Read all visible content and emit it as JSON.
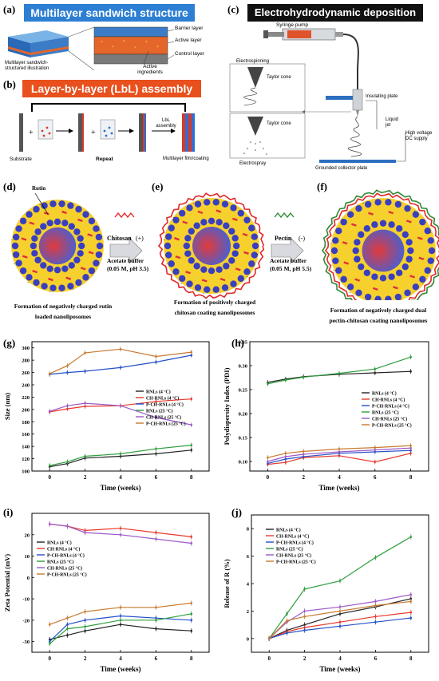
{
  "panel_labels": {
    "a": "(a)",
    "b": "(b)",
    "c": "(c)",
    "d": "(d)",
    "e": "(e)",
    "f": "(f)",
    "g": "(g)",
    "h": "(h)",
    "i": "(i)",
    "j": "(j)"
  },
  "panel_a": {
    "title": "Multilayer sandwich structure",
    "layers": [
      "Barrier layer",
      "Active layer",
      "Control layer"
    ],
    "illustration_label": "Multilayer sandwich-structured illustration",
    "ingredients_label": "Active ingredients"
  },
  "panel_b": {
    "title": "Layer-by-layer (LbL) assembly",
    "substrate": "Substrate",
    "repeat": "Repeat",
    "lbl": "LbL assembly",
    "result": "Multilayer film/coating"
  },
  "panel_c": {
    "title": "Electrohydrodynamic deposition",
    "syringe_pump": "Syringe pump",
    "electrospinning": "Electrospinning",
    "taylor_cone": "Taylor cone",
    "electrospray": "Electrospray",
    "insulating_plate": "Insulating plate",
    "liquid_jet": "Liquid jet",
    "hv": "High voltage DC supply",
    "collector": "Grounded collector plate"
  },
  "panel_def": {
    "rutin": "Rutin",
    "chitosan": "Chitosan",
    "chitosan_sign": "(+)",
    "pectin": "Pectin",
    "pectin_sign": "(-)",
    "buffer1": "Acetate buffer",
    "buffer1_cond": "(0.05 M, pH 3.5)",
    "buffer2": "Acetate buffer",
    "buffer2_cond": "(0.05 M, pH 5.5)",
    "cap_d": "Formation of negatively charged rutin  loaded nanoliposomes",
    "cap_e": "Formation of positively charged chitosan coating nanoliposomes",
    "cap_f": "Formation of negatively charged dual pectin-chitosan coating nanoliposomes"
  },
  "legend_labels": [
    "RNLs (4 °C)",
    "CH-RNLs (4 °C)",
    "P-CH-RNLs (4 °C)",
    "RNLs (25 °C)",
    "CH-RNLs (25 °C)",
    "P-CH-RNLs (25 °C)"
  ],
  "colors": {
    "RNLs4": "#222222",
    "CHRNLs4": "#e8382a",
    "PCHRNLs4": "#2250c8",
    "RNLs25": "#2e9e3c",
    "CHRNLs25": "#9b59c8",
    "PCHRNLs25": "#c87a2e",
    "banner_blue": "#2d7fd3",
    "banner_orange": "#e8501e",
    "banner_black": "#111111"
  },
  "chart_data": [
    {
      "id": "g",
      "type": "line",
      "xlabel": "Time (weeks)",
      "ylabel": "Size (nm)",
      "ylim": [
        100,
        310
      ],
      "yticks": [
        100,
        120,
        140,
        160,
        180,
        200,
        220,
        240,
        260,
        280,
        300
      ],
      "x": [
        0,
        1,
        2,
        4,
        6,
        8
      ],
      "series": [
        {
          "name": "RNLs (4 °C)",
          "values": [
            107,
            112,
            121,
            124,
            128,
            134
          ]
        },
        {
          "name": "CH-RNLs (4 °C)",
          "values": [
            196,
            201,
            205,
            206,
            213,
            217
          ]
        },
        {
          "name": "P-CH-RNLs (4 °C)",
          "values": [
            257,
            260,
            262,
            268,
            277,
            288
          ]
        },
        {
          "name": "RNLs (25 °C)",
          "values": [
            109,
            115,
            124,
            128,
            136,
            142
          ]
        },
        {
          "name": "CH-RNLs (25 °C)",
          "values": [
            197,
            206,
            210,
            206,
            187,
            175
          ]
        },
        {
          "name": "P-CH-RNLs (25 °C)",
          "values": [
            258,
            271,
            292,
            298,
            286,
            293
          ]
        }
      ]
    },
    {
      "id": "h",
      "type": "line",
      "xlabel": "Time (weeks)",
      "ylabel": "Polydispersity Index (PDI)",
      "ylim": [
        0.08,
        0.35
      ],
      "yticks": [
        0.1,
        0.15,
        0.2,
        0.25,
        0.3,
        0.35
      ],
      "x": [
        0,
        1,
        2,
        4,
        6,
        8
      ],
      "series": [
        {
          "name": "RNLs (4 °C)",
          "values": [
            0.265,
            0.272,
            0.277,
            0.282,
            0.285,
            0.288
          ]
        },
        {
          "name": "CH-RNLs (4 °C)",
          "values": [
            0.094,
            0.098,
            0.108,
            0.112,
            0.099,
            0.117
          ]
        },
        {
          "name": "P-CH-RNLs (4 °C)",
          "values": [
            0.096,
            0.105,
            0.11,
            0.117,
            0.12,
            0.123
          ]
        },
        {
          "name": "RNLs (25 °C)",
          "values": [
            0.262,
            0.27,
            0.276,
            0.284,
            0.293,
            0.318
          ]
        },
        {
          "name": "CH-RNLs (25 °C)",
          "values": [
            0.1,
            0.11,
            0.115,
            0.12,
            0.124,
            0.128
          ]
        },
        {
          "name": "P-CH-RNLs (25 °C)",
          "values": [
            0.108,
            0.117,
            0.121,
            0.126,
            0.129,
            0.133
          ]
        }
      ]
    },
    {
      "id": "i",
      "type": "line",
      "xlabel": "Time (weeks)",
      "ylabel": "Zeta Potential (mV)",
      "ylim": [
        -35,
        30
      ],
      "yticks": [
        -30,
        -20,
        -10,
        0,
        10,
        20
      ],
      "x": [
        0,
        1,
        2,
        4,
        6,
        8
      ],
      "series": [
        {
          "name": "RNLs (4 °C)",
          "values": [
            -29,
            -27,
            -25,
            -22,
            -24,
            -25
          ]
        },
        {
          "name": "CH-RNLs (4 °C)",
          "values": [
            25,
            24,
            22,
            23,
            21,
            19
          ]
        },
        {
          "name": "P-CH-RNLs (4 °C)",
          "values": [
            -30,
            -22,
            -20,
            -18,
            -19,
            -20
          ]
        },
        {
          "name": "RNLs (25 °C)",
          "values": [
            -31,
            -24,
            -23,
            -20,
            -20,
            -17
          ]
        },
        {
          "name": "CH-RNLs (25 °C)",
          "values": [
            25,
            24,
            21,
            20,
            18,
            16
          ]
        },
        {
          "name": "P-CH-RNLs (25 °C)",
          "values": [
            -22,
            -19,
            -16,
            -14,
            -14,
            -12
          ]
        }
      ]
    },
    {
      "id": "j",
      "type": "line",
      "xlabel": "Time (weeks)",
      "ylabel": "Release of R (%)",
      "ylim": [
        -1,
        9
      ],
      "yticks": [
        0,
        2,
        4,
        6,
        8
      ],
      "x": [
        0,
        1,
        2,
        4,
        6,
        8
      ],
      "series": [
        {
          "name": "RNLs (4 °C)",
          "values": [
            0,
            0.6,
            1.0,
            1.8,
            2.3,
            2.9
          ]
        },
        {
          "name": "CH-RNLs (4 °C)",
          "values": [
            0,
            0.5,
            0.8,
            1.2,
            1.6,
            1.9
          ]
        },
        {
          "name": "P-CH-RNLs (4 °C)",
          "values": [
            0,
            0.4,
            0.6,
            0.9,
            1.2,
            1.5
          ]
        },
        {
          "name": "RNLs (25 °C)",
          "values": [
            0,
            1.8,
            3.6,
            4.2,
            5.9,
            7.4
          ]
        },
        {
          "name": "CH-RNLs (25 °C)",
          "values": [
            0,
            1.2,
            2.0,
            2.3,
            2.7,
            3.2
          ]
        },
        {
          "name": "P-CH-RNLs (25 °C)",
          "values": [
            0,
            1.3,
            1.6,
            2.0,
            2.4,
            2.7
          ]
        }
      ]
    }
  ]
}
